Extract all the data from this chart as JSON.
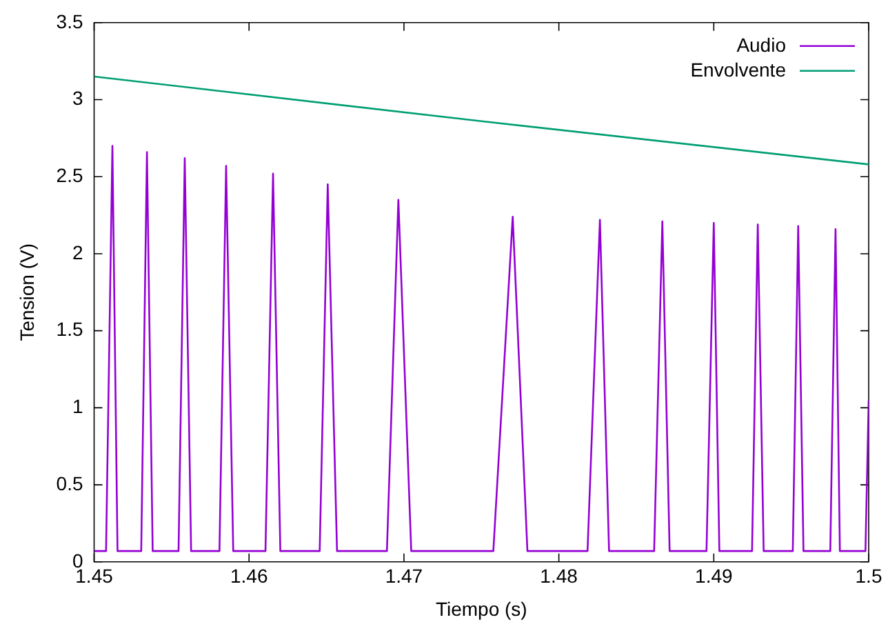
{
  "chart_data": {
    "type": "line",
    "xlabel": "Tiempo (s)",
    "ylabel": "Tension (V)",
    "xlim": [
      1.45,
      1.5
    ],
    "xticks": [
      1.45,
      1.46,
      1.47,
      1.48,
      1.49,
      1.5
    ],
    "ylim": [
      0,
      3.5
    ],
    "yticks": [
      0,
      0.5,
      1,
      1.5,
      2,
      2.5,
      3,
      3.5
    ],
    "grid": false,
    "legend": "top right",
    "marker": "none",
    "line_style": "solid",
    "series": [
      {
        "name": "Audio",
        "color": "#9400d3",
        "x": [
          1.45,
          1.45077,
          1.45118,
          1.45151,
          1.45304,
          1.45341,
          1.45378,
          1.45545,
          1.45585,
          1.45626,
          1.45809,
          1.45852,
          1.45898,
          1.46106,
          1.46155,
          1.46202,
          1.46456,
          1.46508,
          1.46568,
          1.4689,
          1.46964,
          1.47047,
          1.47577,
          1.47702,
          1.47797,
          1.48185,
          1.48265,
          1.48324,
          1.48615,
          1.48668,
          1.48715,
          1.48953,
          1.49,
          1.49036,
          1.49247,
          1.49284,
          1.49322,
          1.4951,
          1.49545,
          1.49579,
          1.49752,
          1.49786,
          1.49814,
          1.49979,
          1.5
        ],
        "values": [
          0.07,
          0.07,
          2.7,
          0.07,
          0.07,
          2.66,
          0.07,
          0.07,
          2.62,
          0.07,
          0.07,
          2.57,
          0.07,
          0.07,
          2.52,
          0.07,
          0.07,
          2.45,
          0.07,
          0.07,
          2.35,
          0.07,
          0.07,
          2.24,
          0.07,
          0.07,
          2.22,
          0.07,
          0.07,
          2.21,
          0.07,
          0.07,
          2.2,
          0.07,
          0.07,
          2.19,
          0.07,
          0.07,
          2.18,
          0.07,
          0.07,
          2.16,
          0.07,
          0.07,
          1.05
        ]
      },
      {
        "name": "Envolvente",
        "color": "#009e73",
        "x": [
          1.45,
          1.475,
          1.5
        ],
        "values": [
          3.15,
          2.86,
          2.58
        ]
      }
    ]
  }
}
